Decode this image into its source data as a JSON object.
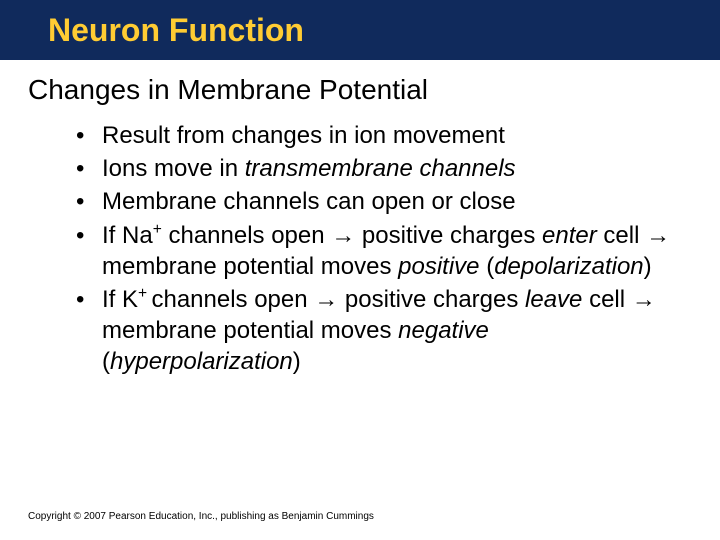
{
  "colors": {
    "title_bar_bg": "#102a5c",
    "title_text": "#ffcc33",
    "body_bg": "#ffffff",
    "text": "#000000"
  },
  "typography": {
    "title_fontsize": 32,
    "heading_fontsize": 28,
    "bullet_fontsize": 24,
    "footer_fontsize": 10,
    "font_family": "Arial"
  },
  "title": "Neuron Function",
  "section_heading": "Changes in Membrane Potential",
  "bullets": [
    {
      "segments": [
        {
          "text": "Result from changes in ion movement"
        }
      ]
    },
    {
      "segments": [
        {
          "text": "Ions move in "
        },
        {
          "text": "transmembrane channels",
          "italic": true
        }
      ]
    },
    {
      "segments": [
        {
          "text": "Membrane channels can open or close"
        }
      ]
    },
    {
      "segments": [
        {
          "text": "If Na"
        },
        {
          "text": "+",
          "sup": true
        },
        {
          "text": " channels open "
        },
        {
          "text": "→",
          "arrow": true
        },
        {
          "text": " positive charges "
        },
        {
          "text": "enter",
          "italic": true
        },
        {
          "text": " cell "
        },
        {
          "text": "→",
          "arrow": true
        },
        {
          "text": " membrane potential moves "
        },
        {
          "text": "positive",
          "italic": true
        },
        {
          "text": " ("
        },
        {
          "text": "depolarization",
          "italic": true
        },
        {
          "text": ")"
        }
      ]
    },
    {
      "segments": [
        {
          "text": "If K"
        },
        {
          "text": "+ ",
          "sup": true
        },
        {
          "text": "channels open "
        },
        {
          "text": "→",
          "arrow": true
        },
        {
          "text": " positive charges "
        },
        {
          "text": "leave",
          "italic": true
        },
        {
          "text": " cell "
        },
        {
          "text": "→",
          "arrow": true
        },
        {
          "text": " membrane potential moves "
        },
        {
          "text": "negative",
          "italic": true
        },
        {
          "text": " ("
        },
        {
          "text": "hyperpolarization",
          "italic": true
        },
        {
          "text": ")"
        }
      ]
    }
  ],
  "footer": "Copyright © 2007 Pearson Education, Inc., publishing as Benjamin Cummings"
}
